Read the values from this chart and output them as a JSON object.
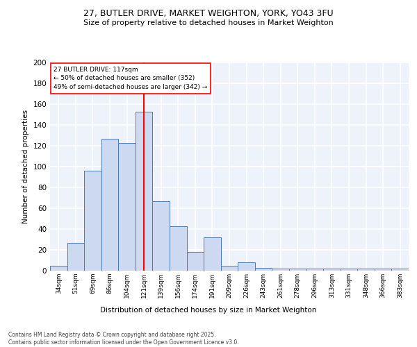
{
  "title_line1": "27, BUTLER DRIVE, MARKET WEIGHTON, YORK, YO43 3FU",
  "title_line2": "Size of property relative to detached houses in Market Weighton",
  "xlabel": "Distribution of detached houses by size in Market Weighton",
  "ylabel": "Number of detached properties",
  "labels": [
    "34sqm",
    "51sqm",
    "69sqm",
    "86sqm",
    "104sqm",
    "121sqm",
    "139sqm",
    "156sqm",
    "174sqm",
    "191sqm",
    "209sqm",
    "226sqm",
    "243sqm",
    "261sqm",
    "278sqm",
    "296sqm",
    "313sqm",
    "331sqm",
    "348sqm",
    "366sqm",
    "383sqm"
  ],
  "heights": [
    5,
    27,
    96,
    127,
    123,
    153,
    67,
    43,
    18,
    32,
    5,
    8,
    3,
    2,
    2,
    2,
    2,
    2,
    2,
    2,
    2
  ],
  "vline_index": 5,
  "annotation_text": "27 BUTLER DRIVE: 117sqm\n← 50% of detached houses are smaller (352)\n49% of semi-detached houses are larger (342) →",
  "bar_color_fill": "#ccd9f0",
  "bar_color_edge": "#4f7ab0",
  "vline_color": "red",
  "background_color": "#eef2fb",
  "grid_color": "#ffffff",
  "ylim": [
    0,
    200
  ],
  "yticks": [
    0,
    20,
    40,
    60,
    80,
    100,
    120,
    140,
    160,
    180,
    200
  ],
  "footer_line1": "Contains HM Land Registry data © Crown copyright and database right 2025.",
  "footer_line2": "Contains public sector information licensed under the Open Government Licence v3.0."
}
